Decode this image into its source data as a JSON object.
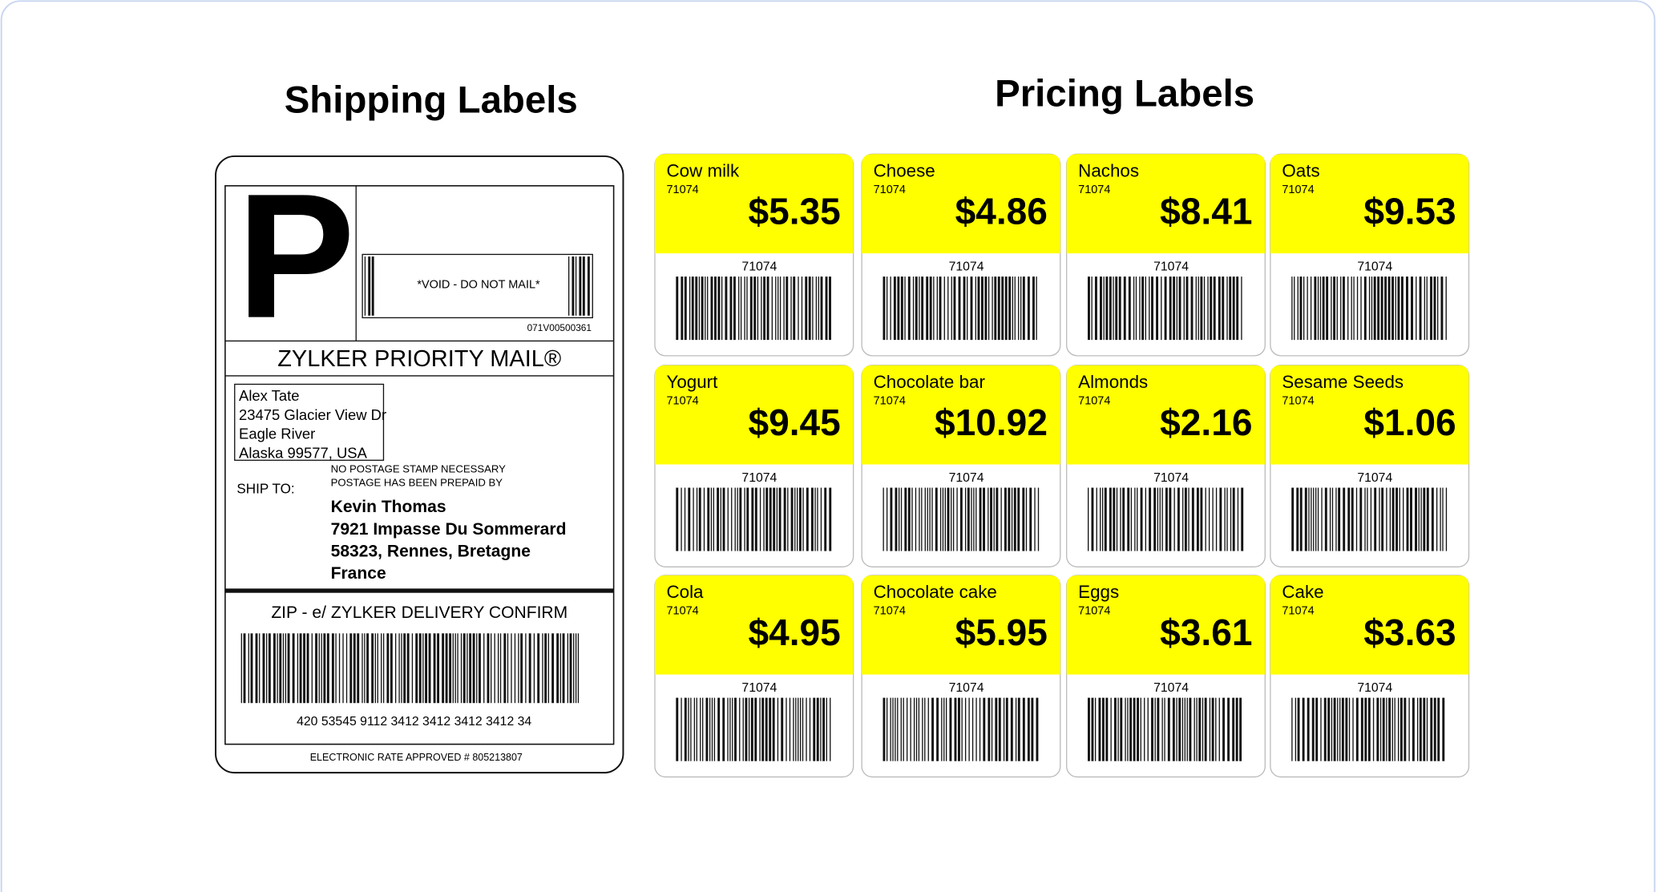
{
  "shipping": {
    "title": "Shipping Labels",
    "big_letter": "P",
    "void_text": "*VOID - DO NOT MAIL*",
    "tracking_small": "071V00500361",
    "service": "ZYLKER PRIORITY MAIL®",
    "return_address": [
      "Alex Tate",
      "23475 Glacier View Dr",
      "Eagle River",
      "Alaska 99577, USA"
    ],
    "postage_note": [
      "NO POSTAGE STAMP NECESSARY",
      "POSTAGE HAS BEEN PREPAID BY"
    ],
    "ship_to_label": "SHIP TO:",
    "recipient": [
      "Kevin Thomas",
      "7921 Impasse Du Sommerard",
      "58323, Rennes, Bretagne",
      "France"
    ],
    "confirm_title": "ZIP - e/ ZYLKER DELIVERY CONFIRM",
    "barcode_number": "420 53545 9112 3412 3412 3412 3412 34",
    "footer": "ELECTRONIC RATE APPROVED # 805213807"
  },
  "pricing": {
    "title": "Pricing Labels",
    "labels": [
      {
        "name": "Cow milk",
        "code": "71074",
        "price": "$5.35"
      },
      {
        "name": "Choese",
        "code": "71074",
        "price": "$4.86"
      },
      {
        "name": "Nachos",
        "code": "71074",
        "price": "$8.41"
      },
      {
        "name": "Oats",
        "code": "71074",
        "price": "$9.53"
      },
      {
        "name": "Yogurt",
        "code": "71074",
        "price": "$9.45"
      },
      {
        "name": "Chocolate bar",
        "code": "71074",
        "price": "$10.92"
      },
      {
        "name": "Almonds",
        "code": "71074",
        "price": "$2.16"
      },
      {
        "name": "Sesame Seeds",
        "code": "71074",
        "price": "$1.06"
      },
      {
        "name": "Cola",
        "code": "71074",
        "price": "$4.95"
      },
      {
        "name": "Chocolate cake",
        "code": "71074",
        "price": "$5.95"
      },
      {
        "name": "Eggs",
        "code": "71074",
        "price": "$3.61"
      },
      {
        "name": "Cake",
        "code": "71074",
        "price": "$3.63"
      }
    ]
  }
}
